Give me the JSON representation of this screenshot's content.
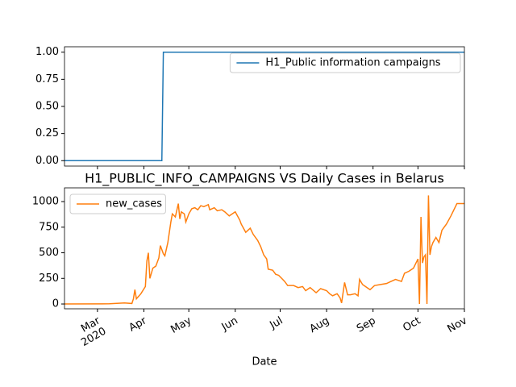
{
  "chart_data": [
    {
      "type": "line",
      "xlim": [
        18300,
        18567
      ],
      "ylim": [
        -0.05,
        1.05
      ],
      "yticks": [
        {
          "value": 0,
          "label": "0.00"
        },
        {
          "value": 0.25,
          "label": "0.25"
        },
        {
          "value": 0.5,
          "label": "0.50"
        },
        {
          "value": 0.75,
          "label": "0.75"
        },
        {
          "value": 1,
          "label": "1.00"
        }
      ],
      "legend": "upper right",
      "series": [
        {
          "name": "H1_Public information campaigns",
          "color": "#1f77b4",
          "x": [
            18300,
            18365,
            18366,
            18567
          ],
          "values": [
            0,
            0,
            1,
            1
          ]
        }
      ]
    },
    {
      "type": "line",
      "title": "H1_PUBLIC_INFO_CAMPAIGNS VS Daily Cases in Belarus",
      "xlabel": "Date",
      "xlim": [
        18300,
        18567
      ],
      "xticks": [
        {
          "value": 18322,
          "label": "Mar\n2020"
        },
        {
          "value": 18353,
          "label": "Apr"
        },
        {
          "value": 18383,
          "label": "May"
        },
        {
          "value": 18414,
          "label": "Jun"
        },
        {
          "value": 18444,
          "label": "Jul"
        },
        {
          "value": 18475,
          "label": "Aug"
        },
        {
          "value": 18506,
          "label": "Sep"
        },
        {
          "value": 18536,
          "label": "Oct"
        },
        {
          "value": 18567,
          "label": "Nov"
        }
      ],
      "ylim": [
        -47,
        1134
      ],
      "yticks": [
        0,
        250,
        500,
        750,
        1000
      ],
      "legend": "upper left",
      "series": [
        {
          "name": "new_cases",
          "color": "#ff7f0e",
          "x": [
            18300,
            18330,
            18340,
            18345,
            18346,
            18347,
            18348,
            18351,
            18354,
            18355,
            18356,
            18357,
            18359,
            18361,
            18363,
            18364,
            18366,
            18367,
            18369,
            18371,
            18372,
            18374,
            18376,
            18377,
            18378,
            18380,
            18381,
            18383,
            18385,
            18387,
            18389,
            18391,
            18393,
            18396,
            18397,
            18400,
            18402,
            18405,
            18407,
            18410,
            18412,
            18414,
            18417,
            18418,
            18421,
            18424,
            18426,
            18429,
            18431,
            18433,
            18435,
            18436,
            18439,
            18441,
            18443,
            18445,
            18447,
            18449,
            18453,
            18456,
            18459,
            18461,
            18464,
            18468,
            18471,
            18475,
            18477,
            18479,
            18482,
            18484,
            18485,
            18487,
            18489,
            18491,
            18494,
            18496,
            18497,
            18499,
            18502,
            18504,
            18507,
            18511,
            18515,
            18518,
            18521,
            18525,
            18527,
            18530,
            18533,
            18535,
            18536,
            18537,
            18538,
            18539,
            18540,
            18541,
            18542,
            18543,
            18544,
            18545,
            18546,
            18548,
            18550,
            18552,
            18555,
            18558,
            18562,
            18567
          ],
          "values": [
            0,
            2,
            10,
            5,
            50,
            140,
            50,
            100,
            170,
            420,
            500,
            250,
            350,
            370,
            450,
            570,
            490,
            470,
            600,
            800,
            880,
            850,
            980,
            830,
            900,
            880,
            800,
            880,
            930,
            940,
            920,
            960,
            950,
            970,
            920,
            940,
            910,
            920,
            900,
            860,
            880,
            900,
            820,
            780,
            700,
            740,
            680,
            620,
            560,
            480,
            440,
            340,
            330,
            290,
            280,
            250,
            220,
            180,
            180,
            160,
            170,
            130,
            160,
            110,
            150,
            130,
            100,
            80,
            100,
            60,
            10,
            210,
            90,
            90,
            100,
            80,
            240,
            190,
            160,
            140,
            180,
            190,
            200,
            220,
            240,
            220,
            300,
            320,
            350,
            410,
            440,
            0,
            850,
            400,
            460,
            480,
            0,
            1060,
            480,
            560,
            600,
            650,
            600,
            720,
            780,
            860,
            980,
            980
          ]
        }
      ]
    }
  ]
}
